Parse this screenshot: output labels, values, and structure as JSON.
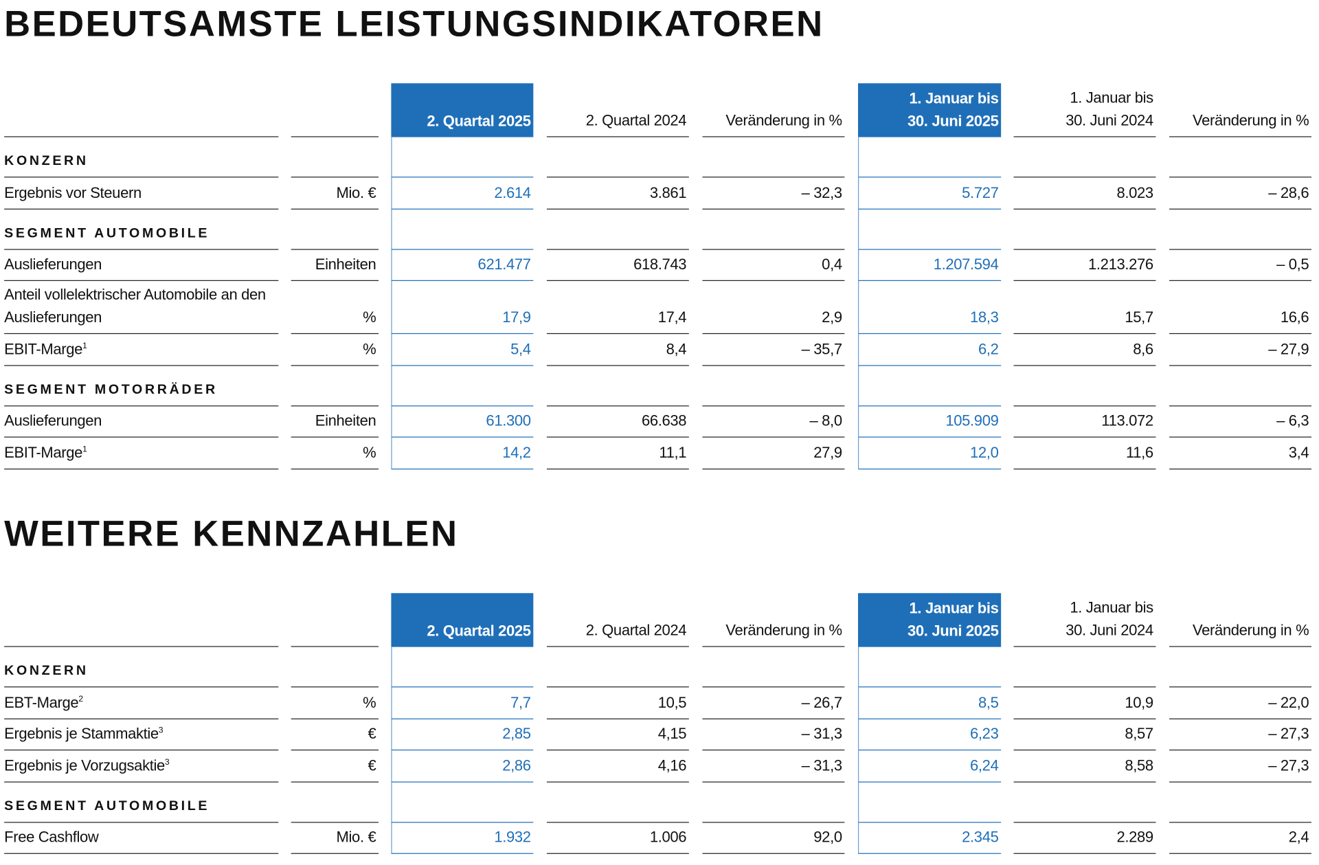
{
  "sections": [
    {
      "title": "BEDEUTSAMSTE LEISTUNGSINDIKATOREN",
      "headers": [
        [
          "2. Quartal 2025"
        ],
        [
          "2. Quartal 2024"
        ],
        [
          "Veränderung in %"
        ],
        [
          "1. Januar bis",
          "30. Juni 2025"
        ],
        [
          "1. Januar bis",
          "30. Juni 2024"
        ],
        [
          "Veränderung in %"
        ]
      ],
      "rows": [
        {
          "group": "KONZERN"
        },
        {
          "label": "Ergebnis vor Steuern",
          "unit": "Mio. €",
          "values": [
            "2.614",
            "3.861",
            "– 32,3",
            "5.727",
            "8.023",
            "– 28,6"
          ]
        },
        {
          "group": "SEGMENT AUTOMOBILE"
        },
        {
          "label": "Auslieferungen",
          "unit": "Einheiten",
          "values": [
            "621.477",
            "618.743",
            "0,4",
            "1.207.594",
            "1.213.276",
            "– 0,5"
          ]
        },
        {
          "label": [
            "Anteil vollelektrischer Automobile an den",
            "Auslieferungen"
          ],
          "unit": "%",
          "values": [
            "17,9",
            "17,4",
            "2,9",
            "18,3",
            "15,7",
            "16,6"
          ]
        },
        {
          "label": "EBIT-Marge",
          "note": "1",
          "unit": "%",
          "values": [
            "5,4",
            "8,4",
            "– 35,7",
            "6,2",
            "8,6",
            "– 27,9"
          ]
        },
        {
          "group": "SEGMENT MOTORRÄDER"
        },
        {
          "label": "Auslieferungen",
          "unit": "Einheiten",
          "values": [
            "61.300",
            "66.638",
            "– 8,0",
            "105.909",
            "113.072",
            "– 6,3"
          ]
        },
        {
          "label": "EBIT-Marge",
          "note": "1",
          "unit": "%",
          "values": [
            "14,2",
            "11,1",
            "27,9",
            "12,0",
            "11,6",
            "3,4"
          ]
        }
      ]
    },
    {
      "title": "WEITERE KENNZAHLEN",
      "headers": [
        [
          "2. Quartal 2025"
        ],
        [
          "2. Quartal 2024"
        ],
        [
          "Veränderung in %"
        ],
        [
          "1. Januar bis",
          "30. Juni 2025"
        ],
        [
          "1. Januar bis",
          "30. Juni 2024"
        ],
        [
          "Veränderung in %"
        ]
      ],
      "rows": [
        {
          "group": "KONZERN"
        },
        {
          "label": "EBT-Marge",
          "note": "2",
          "unit": "%",
          "values": [
            "7,7",
            "10,5",
            "– 26,7",
            "8,5",
            "10,9",
            "– 22,0"
          ]
        },
        {
          "label": "Ergebnis je Stammaktie",
          "note": "3",
          "unit": "€",
          "values": [
            "2,85",
            "4,15",
            "– 31,3",
            "6,23",
            "8,57",
            "– 27,3"
          ]
        },
        {
          "label": "Ergebnis je Vorzugsaktie",
          "note": "3",
          "unit": "€",
          "values": [
            "2,86",
            "4,16",
            "– 31,3",
            "6,24",
            "8,58",
            "– 27,3"
          ]
        },
        {
          "group": "SEGMENT AUTOMOBILE"
        },
        {
          "label": "Free Cashflow",
          "unit": "Mio. €",
          "values": [
            "1.932",
            "1.006",
            "92,0",
            "2.345",
            "2.289",
            "2,4"
          ]
        }
      ]
    }
  ]
}
